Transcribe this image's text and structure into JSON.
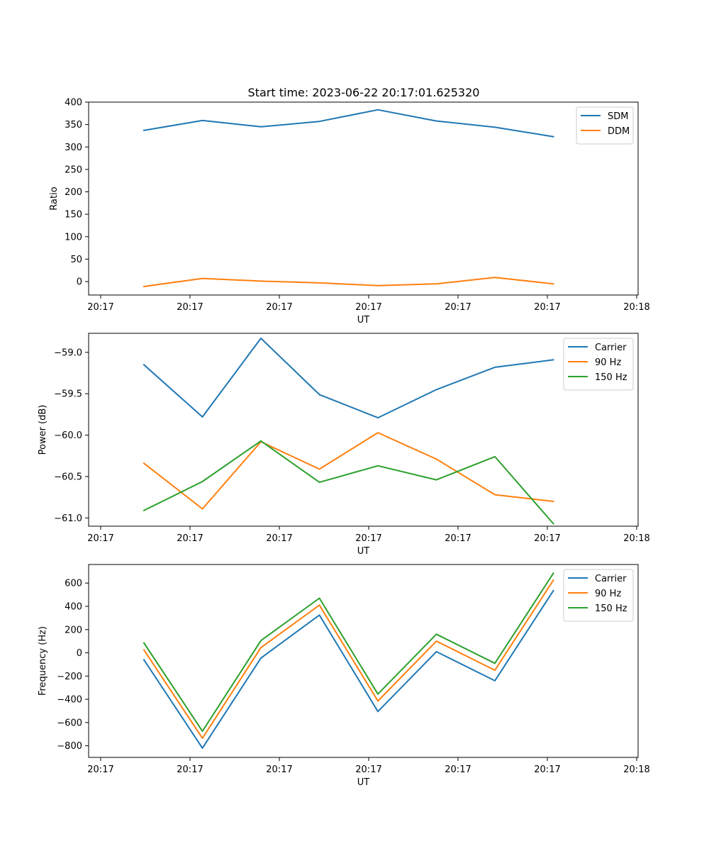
{
  "figure": {
    "title": "Start time: 2023-06-22 20:17:01.625320"
  },
  "chart_data": [
    {
      "type": "line",
      "title": "Start time: 2023-06-22 20:17:01.625320",
      "xlabel": "UT",
      "ylabel": "Ratio",
      "x_tick_labels": [
        "20:17",
        "20:17",
        "20:17",
        "20:17",
        "20:17",
        "20:17",
        "20:18"
      ],
      "y_ticks": [
        0,
        50,
        100,
        150,
        200,
        250,
        300,
        350,
        400
      ],
      "ylim": [
        -30,
        400
      ],
      "grid": false,
      "legend": "top-right",
      "series": [
        {
          "name": "SDM",
          "color": "#1f77b4",
          "values": [
            337,
            359,
            345,
            357,
            383,
            358,
            344,
            323
          ]
        },
        {
          "name": "DDM",
          "color": "#ff7f0e",
          "values": [
            -11,
            7,
            1,
            -3,
            -9,
            -5,
            9,
            -5
          ]
        }
      ]
    },
    {
      "type": "line",
      "xlabel": "UT",
      "ylabel": "Power (dB)",
      "x_tick_labels": [
        "20:17",
        "20:17",
        "20:17",
        "20:17",
        "20:17",
        "20:17",
        "20:18"
      ],
      "y_ticks": [
        -61.0,
        -60.5,
        -60.0,
        -59.5,
        -59.0
      ],
      "y_tick_labels": [
        "−61.0",
        "−60.5",
        "−60.0",
        "−59.5",
        "−59.0"
      ],
      "ylim": [
        -61.1,
        -58.77
      ],
      "grid": false,
      "legend": "top-right",
      "series": [
        {
          "name": "Carrier",
          "color": "#1f77b4",
          "values": [
            -59.15,
            -59.78,
            -58.83,
            -59.51,
            -59.79,
            -59.45,
            -59.18,
            -59.09
          ]
        },
        {
          "name": "90 Hz",
          "color": "#ff7f0e",
          "values": [
            -60.34,
            -60.89,
            -60.08,
            -60.41,
            -59.97,
            -60.29,
            -60.72,
            -60.8
          ]
        },
        {
          "name": "150 Hz",
          "color": "#2ca02c",
          "values": [
            -60.91,
            -60.56,
            -60.07,
            -60.57,
            -60.37,
            -60.54,
            -60.26,
            -61.07
          ]
        }
      ]
    },
    {
      "type": "line",
      "xlabel": "UT",
      "ylabel": "Frequency (Hz)",
      "x_tick_labels": [
        "20:17",
        "20:17",
        "20:17",
        "20:17",
        "20:17",
        "20:17",
        "20:18"
      ],
      "y_ticks": [
        -800,
        -600,
        -400,
        -200,
        0,
        200,
        400,
        600
      ],
      "y_tick_labels": [
        "−800",
        "−600",
        "−400",
        "−200",
        "0",
        "200",
        "400",
        "600"
      ],
      "ylim": [
        -900,
        760
      ],
      "grid": false,
      "legend": "top-right",
      "series": [
        {
          "name": "Carrier",
          "color": "#1f77b4",
          "values": [
            -60,
            -820,
            -45,
            325,
            -505,
            10,
            -240,
            535
          ]
        },
        {
          "name": "90 Hz",
          "color": "#ff7f0e",
          "values": [
            25,
            -735,
            45,
            410,
            -415,
            100,
            -150,
            625
          ]
        },
        {
          "name": "150 Hz",
          "color": "#2ca02c",
          "values": [
            85,
            -675,
            105,
            470,
            -355,
            160,
            -90,
            685
          ]
        }
      ]
    }
  ]
}
